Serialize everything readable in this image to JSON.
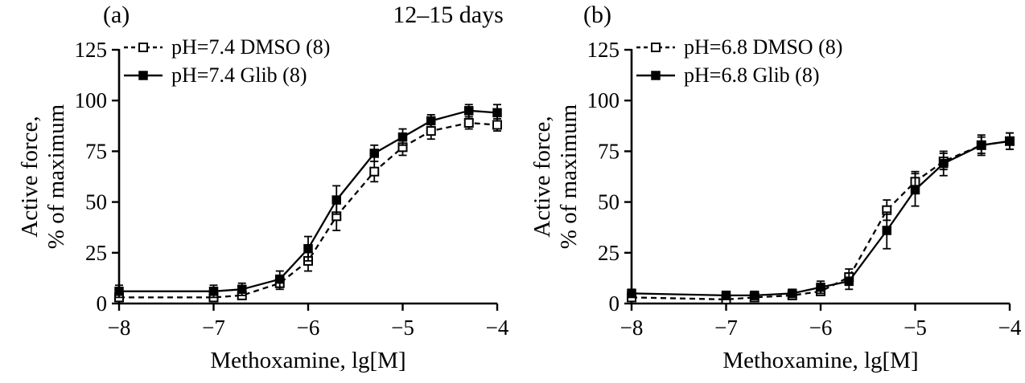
{
  "title": "12–15 days",
  "colors": {
    "foreground": "#000000",
    "background": "#ffffff"
  },
  "chart_data": [
    {
      "type": "line",
      "panel_label": "(a)",
      "xlabel": "Methoxamine, lg[M]",
      "ylabel_lines": [
        "Active force,",
        "% of maximum"
      ],
      "xlim": [
        -8,
        -4
      ],
      "ylim": [
        0,
        125
      ],
      "xticks": [
        -8,
        -7,
        -6,
        -5,
        -4
      ],
      "yticks": [
        0,
        25,
        50,
        75,
        100,
        125
      ],
      "legend_position": "top-left-inside",
      "grid": false,
      "x": [
        -8,
        -7,
        -6.7,
        -6.3,
        -6,
        -5.7,
        -5.3,
        -5,
        -4.7,
        -4.3,
        -4
      ],
      "series": [
        {
          "name": "pH=7.4 DMSO (8)",
          "marker": "open-square",
          "line_style": "dashed",
          "values": [
            3,
            3,
            4,
            10,
            21,
            43,
            65,
            77,
            85,
            89,
            88
          ],
          "errors": [
            2,
            2,
            2,
            3,
            5,
            7,
            5,
            4,
            4,
            3,
            3
          ]
        },
        {
          "name": "pH=7.4 Glib (8)",
          "marker": "filled-square",
          "line_style": "solid",
          "values": [
            6,
            6,
            7,
            12,
            27,
            51,
            74,
            82,
            90,
            95,
            94
          ],
          "errors": [
            3,
            3,
            3,
            4,
            6,
            7,
            4,
            4,
            3,
            3,
            4
          ]
        }
      ]
    },
    {
      "type": "line",
      "panel_label": "(b)",
      "xlabel": "Methoxamine, lg[M]",
      "ylabel_lines": [
        "Active force,",
        "% of maximum"
      ],
      "xlim": [
        -8,
        -4
      ],
      "ylim": [
        0,
        125
      ],
      "xticks": [
        -8,
        -7,
        -6,
        -5,
        -4
      ],
      "yticks": [
        0,
        25,
        50,
        75,
        100,
        125
      ],
      "legend_position": "top-left-inside",
      "grid": false,
      "x": [
        -8,
        -7,
        -6.7,
        -6.3,
        -6,
        -5.7,
        -5.3,
        -5,
        -4.7,
        -4.3,
        -4
      ],
      "series": [
        {
          "name": "pH=6.8 DMSO (8)",
          "marker": "open-square",
          "line_style": "dashed",
          "values": [
            3,
            2,
            3,
            4,
            6,
            13,
            46,
            60,
            70,
            78,
            80
          ],
          "errors": [
            1,
            1,
            1,
            2,
            2,
            4,
            5,
            5,
            4,
            5,
            4
          ]
        },
        {
          "name": "pH=6.8 Glib (8)",
          "marker": "filled-square",
          "line_style": "solid",
          "values": [
            5,
            4,
            4,
            5,
            8,
            11,
            36,
            56,
            69,
            78,
            80
          ],
          "errors": [
            2,
            2,
            2,
            2,
            3,
            4,
            9,
            8,
            6,
            4,
            4
          ]
        }
      ]
    }
  ]
}
